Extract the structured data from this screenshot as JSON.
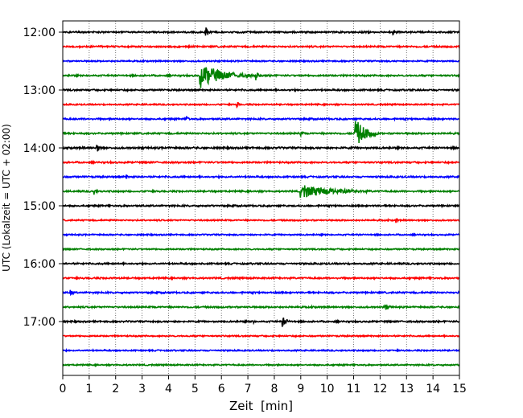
{
  "chart_data": {
    "type": "line",
    "title": "",
    "xlabel": "Zeit  [min]",
    "ylabel": "UTC (Lokalzeit = UTC + 02:00)",
    "xlim": [
      0,
      15
    ],
    "x_ticks": [
      "0",
      "1",
      "2",
      "3",
      "4",
      "5",
      "6",
      "7",
      "8",
      "9",
      "10",
      "11",
      "12",
      "13",
      "14",
      "15"
    ],
    "y_tick_labels": [
      "12:00",
      "13:00",
      "14:00",
      "15:00",
      "16:00",
      "17:00"
    ],
    "grid": "vertical-dotted",
    "colors": {
      "black": "#000000",
      "red": "#ff0000",
      "blue": "#0000ff",
      "green": "#008000",
      "grid": "#555555"
    },
    "series": [
      {
        "start": "12:00",
        "color": "black",
        "amplitude": 0.35,
        "events": [
          {
            "x": 5.4,
            "amp": 1.4,
            "dur": 0.25
          },
          {
            "x": 12.5,
            "amp": 0.9,
            "dur": 0.2
          }
        ]
      },
      {
        "start": "12:15",
        "color": "red",
        "amplitude": 0.35,
        "events": []
      },
      {
        "start": "12:30",
        "color": "blue",
        "amplitude": 0.3,
        "events": []
      },
      {
        "start": "12:45",
        "color": "green",
        "amplitude": 0.35,
        "events": [
          {
            "x": 5.2,
            "amp": 2.8,
            "dur": 2.0
          },
          {
            "x": 7.3,
            "amp": 1.5,
            "dur": 0.2
          }
        ]
      },
      {
        "start": "13:00",
        "color": "black",
        "amplitude": 0.35,
        "events": []
      },
      {
        "start": "13:15",
        "color": "red",
        "amplitude": 0.3,
        "events": [
          {
            "x": 6.6,
            "amp": 1.0,
            "dur": 0.1
          }
        ]
      },
      {
        "start": "13:30",
        "color": "blue",
        "amplitude": 0.35,
        "events": [
          {
            "x": 4.7,
            "amp": 0.9,
            "dur": 0.15
          }
        ]
      },
      {
        "start": "13:45",
        "color": "green",
        "amplitude": 0.35,
        "events": [
          {
            "x": 11.05,
            "amp": 3.5,
            "dur": 0.9
          },
          {
            "x": 9.0,
            "amp": 0.9,
            "dur": 0.2
          }
        ]
      },
      {
        "start": "14:00",
        "color": "black",
        "amplitude": 0.4,
        "events": [
          {
            "x": 1.3,
            "amp": 1.2,
            "dur": 0.2
          }
        ]
      },
      {
        "start": "14:15",
        "color": "red",
        "amplitude": 0.35,
        "events": []
      },
      {
        "start": "14:30",
        "color": "blue",
        "amplitude": 0.35,
        "events": [
          {
            "x": 2.4,
            "amp": 0.8,
            "dur": 0.1
          }
        ]
      },
      {
        "start": "14:45",
        "color": "green",
        "amplitude": 0.35,
        "events": [
          {
            "x": 9.0,
            "amp": 1.6,
            "dur": 3.0
          },
          {
            "x": 1.2,
            "amp": 0.9,
            "dur": 0.2
          }
        ]
      },
      {
        "start": "15:00",
        "color": "black",
        "amplitude": 0.35,
        "events": []
      },
      {
        "start": "15:15",
        "color": "red",
        "amplitude": 0.3,
        "events": [
          {
            "x": 12.6,
            "amp": 0.9,
            "dur": 0.1
          }
        ]
      },
      {
        "start": "15:30",
        "color": "blue",
        "amplitude": 0.3,
        "events": []
      },
      {
        "start": "15:45",
        "color": "green",
        "amplitude": 0.3,
        "events": []
      },
      {
        "start": "16:00",
        "color": "black",
        "amplitude": 0.35,
        "events": []
      },
      {
        "start": "16:15",
        "color": "red",
        "amplitude": 0.35,
        "events": []
      },
      {
        "start": "16:30",
        "color": "blue",
        "amplitude": 0.35,
        "events": [
          {
            "x": 0.3,
            "amp": 1.0,
            "dur": 0.15
          }
        ]
      },
      {
        "start": "16:45",
        "color": "green",
        "amplitude": 0.35,
        "events": [
          {
            "x": 12.2,
            "amp": 0.8,
            "dur": 0.4
          }
        ]
      },
      {
        "start": "17:00",
        "color": "black",
        "amplitude": 0.35,
        "events": [
          {
            "x": 8.3,
            "amp": 1.2,
            "dur": 0.4
          },
          {
            "x": 7.2,
            "amp": 0.8,
            "dur": 0.1
          }
        ]
      },
      {
        "start": "17:15",
        "color": "red",
        "amplitude": 0.3,
        "events": []
      },
      {
        "start": "17:30",
        "color": "blue",
        "amplitude": 0.3,
        "events": []
      },
      {
        "start": "17:45",
        "color": "green",
        "amplitude": 0.3,
        "events": []
      }
    ]
  }
}
